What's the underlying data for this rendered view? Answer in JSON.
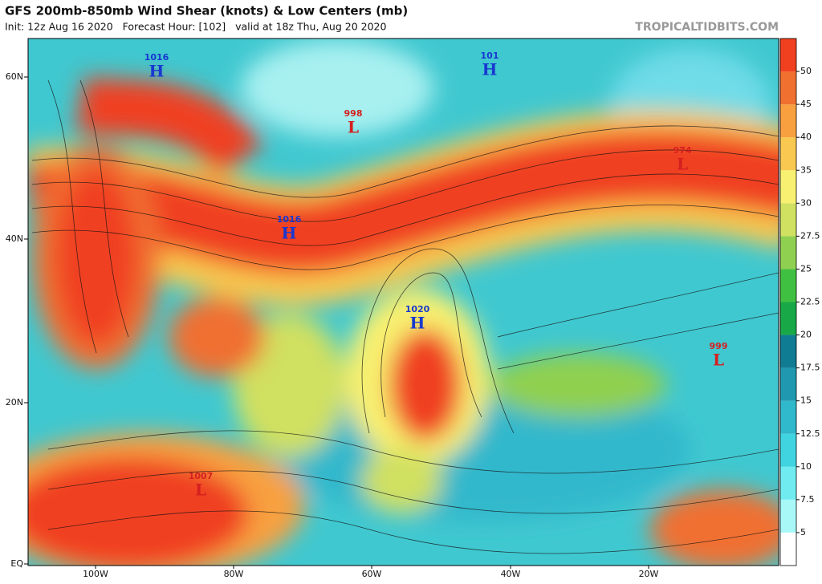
{
  "header": {
    "title": "GFS 200mb-850mb Wind Shear (knots) & Low Centers (mb)",
    "subtitle": "Init: 12z Aug 16 2020   Forecast Hour: [102]   valid at 18z Thu, Aug 20 2020",
    "source": "TROPICALTIDBITS.COM"
  },
  "map": {
    "lat_labels": [
      "60N",
      "40N",
      "20N",
      "EQ"
    ],
    "lon_labels": [
      "100W",
      "80W",
      "60W",
      "40W",
      "20W"
    ],
    "high_color": "#1838d0",
    "low_color": "#d42020",
    "centers": [
      {
        "type": "H",
        "pressure": "1016"
      },
      {
        "type": "H",
        "pressure": "101"
      },
      {
        "type": "L",
        "pressure": "998"
      },
      {
        "type": "L",
        "pressure": "974"
      },
      {
        "type": "H",
        "pressure": "1016"
      },
      {
        "type": "H",
        "pressure": "1020"
      },
      {
        "type": "L",
        "pressure": "999"
      },
      {
        "type": "L",
        "pressure": "1007"
      }
    ]
  },
  "colorbar": {
    "levels": [
      5,
      7.5,
      10,
      12.5,
      15,
      17.5,
      20,
      22.5,
      25,
      27.5,
      30,
      35,
      40,
      45,
      50
    ],
    "colors": [
      "#ffffff",
      "#a8f8f8",
      "#70ecf0",
      "#40d4e0",
      "#30b8cc",
      "#2098b0",
      "#107c94",
      "#18a848",
      "#40c040",
      "#90d050",
      "#d0e060",
      "#f8f070",
      "#f8c850",
      "#f8a040",
      "#f07030",
      "#f04020"
    ]
  }
}
